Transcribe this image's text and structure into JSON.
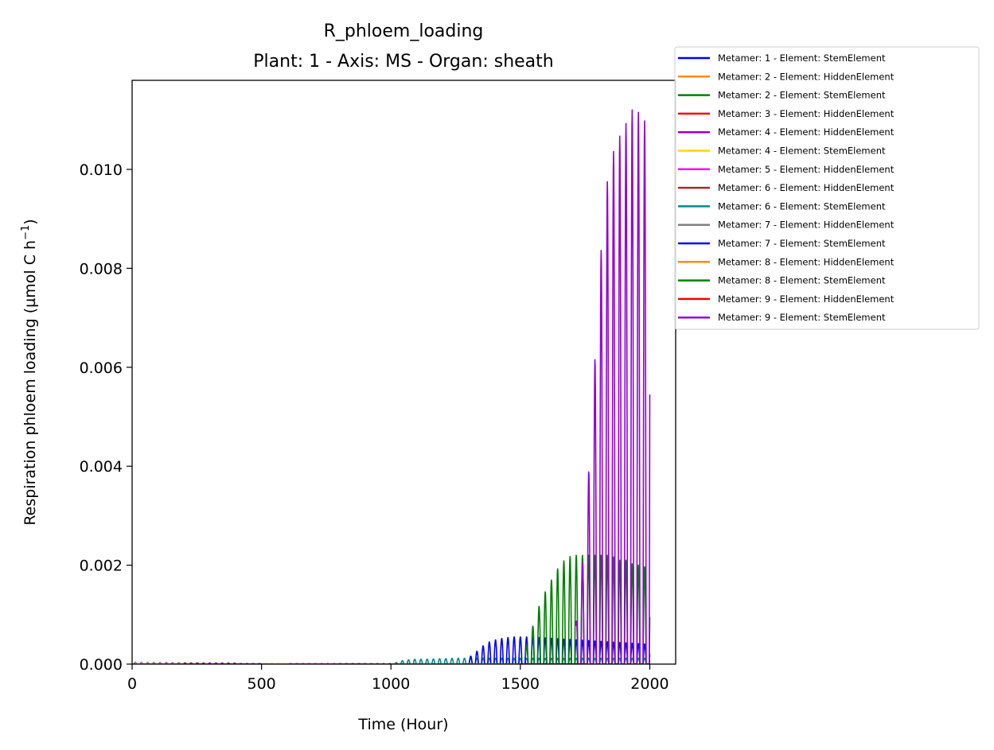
{
  "chart_data": {
    "type": "line",
    "title": "R_phloem_loading",
    "subtitle": "Plant: 1 - Axis: MS - Organ: sheath",
    "xlabel": "Time (Hour)",
    "ylabel_main": "Respiration phloem loading (µmol C h",
    "ylabel_sup": "−1",
    "ylabel_close": ")",
    "xlim": [
      0,
      2100
    ],
    "ylim": [
      0,
      0.0118
    ],
    "xticks": [
      0,
      500,
      1000,
      1500,
      2000
    ],
    "xtick_labels": [
      "0",
      "500",
      "1000",
      "1500",
      "2000"
    ],
    "yticks": [
      0,
      0.002,
      0.004,
      0.006,
      0.008,
      0.01
    ],
    "ytick_labels": [
      "0.000",
      "0.002",
      "0.004",
      "0.006",
      "0.008",
      "0.010"
    ],
    "grid": false,
    "legend_position": "outside-top-right",
    "series": [
      {
        "name": "Metamer: 1 - Element: StemElement",
        "color": "#0000ff",
        "x": [
          0,
          400
        ],
        "y": [
          3e-05,
          2e-05
        ]
      },
      {
        "name": "Metamer: 2 - Element: HiddenElement",
        "color": "#ff8c00",
        "x": [
          0,
          400
        ],
        "y": [
          2e-05,
          1e-05
        ]
      },
      {
        "name": "Metamer: 2 - Element: StemElement",
        "color": "#008000",
        "x": [
          400,
          800
        ],
        "y": [
          1e-05,
          1e-05
        ]
      },
      {
        "name": "Metamer: 3 - Element: HiddenElement",
        "color": "#ff0000",
        "x": [
          200,
          400
        ],
        "y": [
          2e-05,
          1e-05
        ]
      },
      {
        "name": "Metamer: 4 - Element: HiddenElement",
        "color": "#9400d3",
        "x": [
          400,
          800
        ],
        "y": [
          1e-05,
          1e-05
        ]
      },
      {
        "name": "Metamer: 4 - Element: StemElement",
        "color": "#ffd700",
        "x": [
          500,
          800
        ],
        "y": [
          1e-05,
          1e-05
        ]
      },
      {
        "name": "Metamer: 5 - Element: HiddenElement",
        "color": "#ff00ff",
        "x": [
          600,
          900
        ],
        "y": [
          1e-05,
          1e-05
        ]
      },
      {
        "name": "Metamer: 6 - Element: HiddenElement",
        "color": "#a52a2a",
        "x": [
          800,
          1000
        ],
        "y": [
          1e-05,
          1e-05
        ]
      },
      {
        "name": "Metamer: 6 - Element: StemElement",
        "color": "#008b8b",
        "x": [
          1000,
          1020,
          1050,
          1100,
          1150,
          1200,
          1250,
          1300,
          1500,
          2000
        ],
        "y": [
          0,
          3e-05,
          8e-05,
          0.0001,
          0.0001,
          0.00011,
          0.00012,
          0.00012,
          0.00012,
          0.00012
        ]
      },
      {
        "name": "Metamer: 7 - Element: HiddenElement",
        "color": "#808080",
        "x": [
          1000,
          1300
        ],
        "y": [
          1e-05,
          1e-05
        ]
      },
      {
        "name": "Metamer: 7 - Element: StemElement",
        "color": "#0000ff",
        "x": [
          1290,
          1320,
          1350,
          1380,
          1410,
          1440,
          1470,
          1500,
          1530,
          2000
        ],
        "y": [
          0.0001,
          0.0002,
          0.00035,
          0.00045,
          0.0005,
          0.00053,
          0.00055,
          0.00055,
          0.00055,
          0.0004
        ]
      },
      {
        "name": "Metamer: 8 - Element: HiddenElement",
        "color": "#ff8c00",
        "x": [
          1300,
          1500
        ],
        "y": [
          1e-05,
          1e-05
        ]
      },
      {
        "name": "Metamer: 8 - Element: StemElement",
        "color": "#008000",
        "x": [
          1520,
          1550,
          1580,
          1610,
          1640,
          1670,
          1700,
          1730,
          1760,
          1790,
          1820,
          1850,
          1880,
          1910,
          1940,
          1970,
          2000
        ],
        "y": [
          0.0003,
          0.0008,
          0.0013,
          0.0016,
          0.0019,
          0.0021,
          0.0022,
          0.0022,
          0.0022,
          0.0022,
          0.0022,
          0.0022,
          0.0021,
          0.0021,
          0.002,
          0.002,
          0.0019
        ]
      },
      {
        "name": "Metamer: 9 - Element: HiddenElement",
        "color": "#ff0000",
        "x": [
          1500,
          1750
        ],
        "y": [
          1e-05,
          1e-05
        ]
      },
      {
        "name": "Metamer: 9 - Element: StemElement",
        "color": "#9400d3",
        "x": [
          1715,
          1745,
          1775,
          1800,
          1825,
          1850,
          1875,
          1900,
          1925,
          1950,
          1975,
          2000
        ],
        "y": [
          0.0008,
          0.0023,
          0.0048,
          0.0074,
          0.0094,
          0.0102,
          0.0106,
          0.0108,
          0.0112,
          0.0112,
          0.011,
          0.0109
        ]
      }
    ]
  }
}
